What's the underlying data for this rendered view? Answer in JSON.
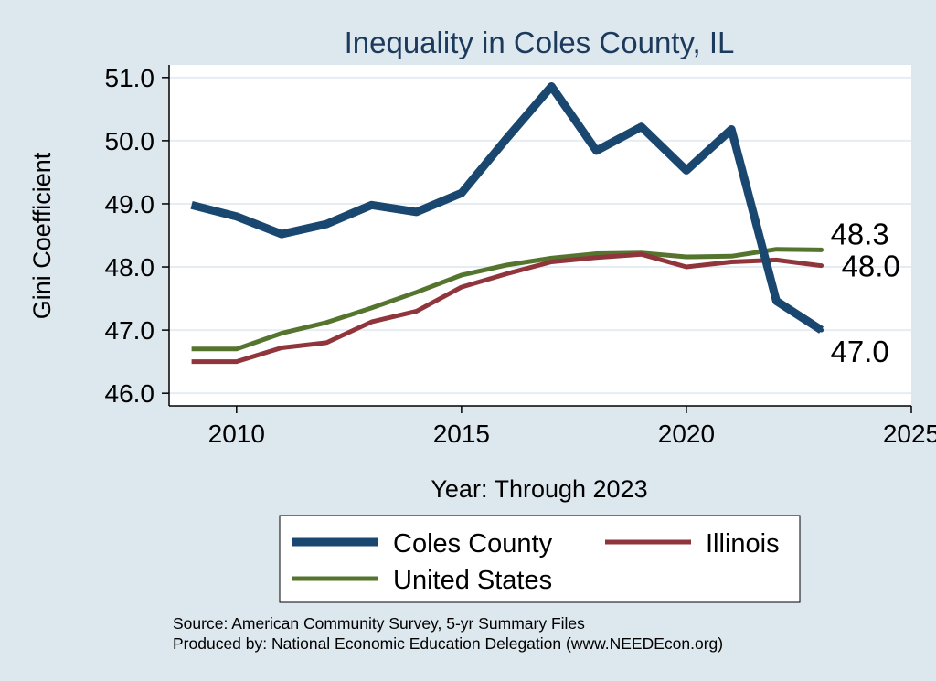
{
  "chart_data": {
    "type": "line",
    "title": "Inequality in Coles County, IL",
    "xlabel": "Year: Through 2023",
    "ylabel": "Gini Coefficient",
    "xlim": [
      2008.5,
      2025
    ],
    "ylim": [
      45.8,
      51.2
    ],
    "xticks": [
      2010,
      2015,
      2020,
      2025
    ],
    "yticks": [
      46.0,
      47.0,
      48.0,
      49.0,
      50.0,
      51.0
    ],
    "x": [
      2009,
      2010,
      2011,
      2012,
      2013,
      2014,
      2015,
      2016,
      2017,
      2018,
      2019,
      2020,
      2021,
      2022,
      2023
    ],
    "series": [
      {
        "name": "Coles County",
        "color": "#1a476f",
        "values": [
          48.98,
          48.8,
          48.52,
          48.68,
          48.98,
          48.87,
          49.17,
          50.03,
          50.86,
          49.84,
          50.22,
          49.53,
          50.18,
          47.46,
          47.0
        ],
        "end_label": "47.0"
      },
      {
        "name": "Illinois",
        "color": "#90353b",
        "values": [
          46.5,
          46.5,
          46.72,
          46.8,
          47.13,
          47.3,
          47.68,
          47.89,
          48.08,
          48.15,
          48.2,
          48.0,
          48.08,
          48.11,
          48.02
        ],
        "end_label": "48.0"
      },
      {
        "name": "United States",
        "color": "#55752f",
        "values": [
          46.7,
          46.7,
          46.95,
          47.12,
          47.35,
          47.6,
          47.87,
          48.03,
          48.14,
          48.21,
          48.22,
          48.16,
          48.17,
          48.28,
          48.27
        ],
        "end_label": "48.3"
      }
    ],
    "grid": true,
    "legend": "bottom",
    "source_lines": [
      "Source: American Community Survey, 5-yr Summary Files",
      "Produced by: National Economic Education Delegation (www.NEEDEcon.org)"
    ]
  }
}
